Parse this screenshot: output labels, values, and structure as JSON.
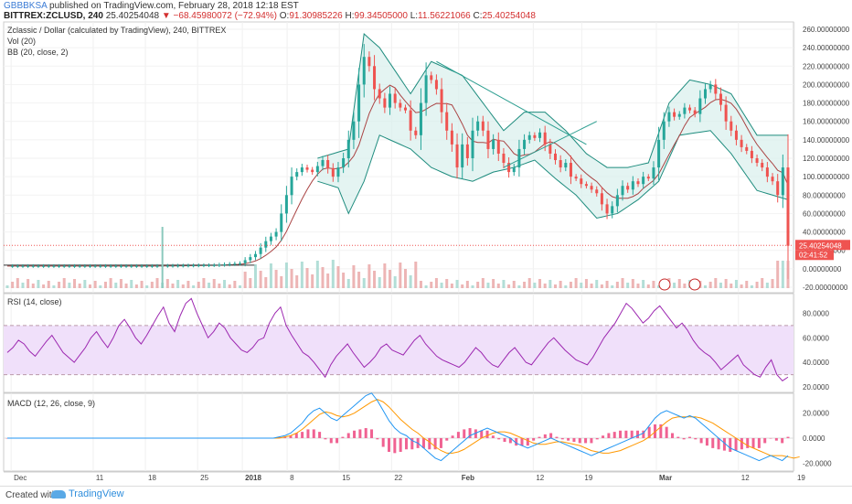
{
  "header": {
    "user": "GBBBKSA",
    "published": "published on TradingView.com, February 28, 2018 12:18 EST",
    "symbol": "BITTREX:ZCLUSD, 240",
    "last": "25.40254048",
    "change": "▼ −68.45980072 (−72.94%)",
    "o_label": "O:",
    "o_val": "91.30985226",
    "h_label": "H:",
    "h_val": "99.34505000",
    "l_label": "L:",
    "l_val": "11.56221066",
    "c_label": "C:",
    "c_val": "25.40254048"
  },
  "main_legend": {
    "title": "Zclassic / Dollar (calculated by TradingView), 240, BITTREX",
    "vol": "Vol (20)",
    "bb": "BB (20, close, 2)"
  },
  "rsi_legend": "RSI (14, close)",
  "macd_legend": "MACD (12, 26, close, 9)",
  "footer": {
    "created": "Created with",
    "brand": "TradingView"
  },
  "colors": {
    "up": "#26a69a",
    "down": "#ef5350",
    "bb": "#1e8c7e",
    "bb_fill": "#d8f0ec",
    "basis": "#a44",
    "rsi": "#9c27b0",
    "rsi_band": "#f0e0fa",
    "macd": "#2196f3",
    "signal": "#ff9800",
    "hist_pos": "#f06292",
    "hist_neg": "#f06292",
    "price_line": "#ef5350"
  },
  "chart_data": [
    {
      "type": "candlestick",
      "title": "Zclassic / Dollar (calculated by TradingView), 240, BITTREX",
      "yaxis_ticks": [
        "260.00000000",
        "240.00000000",
        "220.00000000",
        "200.00000000",
        "180.00000000",
        "160.00000000",
        "140.00000000",
        "120.00000000",
        "100.00000000",
        "80.00000000",
        "60.00000000",
        "40.00000000",
        "20.00000000",
        "0.00000000",
        "-20.00000000"
      ],
      "ylim": [
        -20,
        260
      ],
      "xaxis_ticks": [
        "Dec",
        "11",
        "18",
        "25",
        "2018",
        "8",
        "15",
        "22",
        "Feb",
        "12",
        "19",
        "Mar",
        "12",
        "19"
      ],
      "last_price_label": "25.40254048",
      "countdown_label": "02:41:52",
      "close_path": [
        [
          0,
          3
        ],
        [
          12,
          3
        ],
        [
          28,
          3
        ],
        [
          40,
          4
        ],
        [
          45,
          6
        ],
        [
          48,
          16
        ],
        [
          50,
          30
        ],
        [
          52,
          40
        ],
        [
          53,
          60
        ],
        [
          55,
          100
        ],
        [
          57,
          110
        ],
        [
          59,
          105
        ],
        [
          61,
          118
        ],
        [
          63,
          100
        ],
        [
          64,
          110
        ],
        [
          65,
          120
        ],
        [
          66,
          140
        ],
        [
          67,
          160
        ],
        [
          68,
          200
        ],
        [
          69,
          230
        ],
        [
          70,
          220
        ],
        [
          71,
          195
        ],
        [
          72,
          185
        ],
        [
          73,
          175
        ],
        [
          74,
          190
        ],
        [
          75,
          180
        ],
        [
          76,
          175
        ],
        [
          77,
          172
        ],
        [
          78,
          150
        ],
        [
          79,
          145
        ],
        [
          80,
          180
        ],
        [
          81,
          210
        ],
        [
          82,
          205
        ],
        [
          83,
          195
        ],
        [
          84,
          170
        ],
        [
          85,
          150
        ],
        [
          86,
          135
        ],
        [
          87,
          110
        ],
        [
          88,
          135
        ],
        [
          89,
          120
        ],
        [
          90,
          150
        ],
        [
          91,
          160
        ],
        [
          92,
          150
        ],
        [
          93,
          130
        ],
        [
          94,
          140
        ],
        [
          95,
          125
        ],
        [
          96,
          115
        ],
        [
          97,
          105
        ],
        [
          98,
          110
        ],
        [
          99,
          130
        ],
        [
          100,
          140
        ],
        [
          101,
          145
        ],
        [
          102,
          142
        ],
        [
          103,
          148
        ],
        [
          104,
          135
        ],
        [
          105,
          125
        ],
        [
          106,
          118
        ],
        [
          107,
          110
        ],
        [
          108,
          115
        ],
        [
          109,
          100
        ],
        [
          110,
          98
        ],
        [
          111,
          92
        ],
        [
          112,
          90
        ],
        [
          113,
          86
        ],
        [
          114,
          82
        ],
        [
          115,
          70
        ],
        [
          116,
          60
        ],
        [
          117,
          68
        ],
        [
          118,
          80
        ],
        [
          119,
          90
        ],
        [
          120,
          86
        ],
        [
          121,
          95
        ],
        [
          122,
          92
        ],
        [
          123,
          100
        ],
        [
          124,
          98
        ],
        [
          125,
          110
        ],
        [
          126,
          140
        ],
        [
          127,
          160
        ],
        [
          128,
          170
        ],
        [
          129,
          165
        ],
        [
          130,
          168
        ],
        [
          131,
          175
        ],
        [
          132,
          172
        ],
        [
          133,
          168
        ],
        [
          134,
          185
        ],
        [
          135,
          195
        ],
        [
          136,
          200
        ],
        [
          137,
          190
        ],
        [
          138,
          178
        ],
        [
          139,
          160
        ],
        [
          140,
          150
        ],
        [
          141,
          140
        ],
        [
          142,
          132
        ],
        [
          143,
          128
        ],
        [
          144,
          120
        ],
        [
          145,
          115
        ],
        [
          146,
          110
        ],
        [
          147,
          100
        ],
        [
          148,
          95
        ],
        [
          149,
          80
        ],
        [
          150,
          110
        ],
        [
          151,
          25
        ]
      ],
      "bb_upper": [
        [
          60,
          120
        ],
        [
          66,
          130
        ],
        [
          69,
          255
        ],
        [
          72,
          240
        ],
        [
          78,
          190
        ],
        [
          82,
          225
        ],
        [
          88,
          210
        ],
        [
          92,
          180
        ],
        [
          96,
          150
        ],
        [
          100,
          170
        ],
        [
          104,
          170
        ],
        [
          108,
          150
        ],
        [
          112,
          125
        ],
        [
          116,
          110
        ],
        [
          120,
          110
        ],
        [
          124,
          115
        ],
        [
          128,
          180
        ],
        [
          132,
          205
        ],
        [
          136,
          200
        ],
        [
          140,
          190
        ],
        [
          145,
          145
        ],
        [
          151,
          145
        ]
      ],
      "bb_lower": [
        [
          60,
          95
        ],
        [
          64,
          88
        ],
        [
          66,
          60
        ],
        [
          69,
          95
        ],
        [
          72,
          145
        ],
        [
          78,
          130
        ],
        [
          82,
          110
        ],
        [
          86,
          100
        ],
        [
          90,
          95
        ],
        [
          94,
          105
        ],
        [
          98,
          110
        ],
        [
          102,
          118
        ],
        [
          106,
          98
        ],
        [
          110,
          80
        ],
        [
          114,
          55
        ],
        [
          118,
          60
        ],
        [
          122,
          75
        ],
        [
          126,
          95
        ],
        [
          130,
          145
        ],
        [
          136,
          150
        ],
        [
          140,
          125
        ],
        [
          145,
          85
        ],
        [
          151,
          75
        ]
      ],
      "trendline": [
        [
          83,
          225
        ],
        [
          112,
          135
        ]
      ],
      "trendline2": [
        [
          96,
          110
        ],
        [
          114,
          160
        ]
      ]
    },
    {
      "type": "line",
      "title": "RSI (14, close)",
      "yaxis_ticks": [
        "80.0000",
        "60.0000",
        "40.0000",
        "20.0000"
      ],
      "ylim": [
        20,
        90
      ],
      "bands": [
        30,
        70
      ],
      "values": [
        48,
        52,
        58,
        55,
        49,
        45,
        51,
        57,
        62,
        55,
        48,
        44,
        40,
        46,
        52,
        60,
        65,
        58,
        52,
        60,
        70,
        75,
        68,
        60,
        55,
        62,
        70,
        78,
        85,
        72,
        65,
        78,
        88,
        92,
        80,
        70,
        60,
        65,
        72,
        68,
        60,
        55,
        50,
        48,
        52,
        58,
        60,
        72,
        80,
        85,
        70,
        62,
        55,
        48,
        45,
        40,
        34,
        28,
        38,
        45,
        50,
        55,
        48,
        42,
        36,
        40,
        45,
        52,
        55,
        50,
        48,
        46,
        52,
        58,
        62,
        55,
        50,
        45,
        42,
        40,
        38,
        36,
        40,
        46,
        52,
        48,
        42,
        38,
        36,
        42,
        48,
        52,
        46,
        40,
        38,
        44,
        50,
        56,
        60,
        55,
        50,
        46,
        42,
        40,
        38,
        44,
        52,
        60,
        66,
        72,
        80,
        88,
        84,
        78,
        72,
        76,
        82,
        86,
        80,
        74,
        68,
        72,
        66,
        58,
        52,
        48,
        45,
        40,
        34,
        38,
        42,
        46,
        38,
        34,
        30,
        28,
        36,
        42,
        30,
        25,
        28
      ]
    },
    {
      "type": "line",
      "title": "MACD (12, 26, close, 9)",
      "yaxis_ticks": [
        "20.0000",
        "0.0000",
        "-20.0000"
      ],
      "ylim": [
        -22,
        30
      ],
      "macd": [
        0,
        0,
        0,
        0,
        0,
        0,
        0,
        0,
        0,
        0,
        0,
        0,
        0,
        0,
        0,
        0,
        0,
        0,
        0,
        0,
        0,
        0,
        0,
        0,
        0,
        0,
        0,
        0,
        0,
        0,
        0,
        0,
        0,
        0,
        0,
        0,
        0,
        0,
        0,
        0,
        0,
        0,
        0,
        0,
        0,
        0,
        0,
        1,
        2,
        4,
        8,
        12,
        18,
        22,
        24,
        20,
        16,
        14,
        18,
        22,
        26,
        30,
        34,
        36,
        30,
        22,
        14,
        8,
        4,
        2,
        -2,
        -4,
        -8,
        -12,
        -16,
        -18,
        -14,
        -10,
        -6,
        -2,
        2,
        4,
        6,
        8,
        6,
        4,
        2,
        0,
        -4,
        -6,
        -8,
        -6,
        -4,
        -2,
        0,
        -2,
        -4,
        -6,
        -8,
        -10,
        -12,
        -14,
        -12,
        -10,
        -8,
        -6,
        -4,
        -2,
        0,
        2,
        4,
        10,
        16,
        20,
        22,
        20,
        18,
        16,
        18,
        16,
        12,
        8,
        4,
        0,
        -4,
        -8,
        -10,
        -12,
        -14,
        -16,
        -18,
        -16,
        -14,
        -16,
        -18,
        -14
      ],
      "signal": [
        0,
        0,
        0,
        0,
        0,
        0,
        0,
        0,
        0,
        0,
        0,
        0,
        0,
        0,
        0,
        0,
        0,
        0,
        0,
        0,
        0,
        0,
        0,
        0,
        0,
        0,
        0,
        0,
        0,
        0,
        0,
        0,
        0,
        0,
        0,
        0,
        0,
        0,
        0,
        0,
        0,
        0,
        0,
        0,
        0,
        0,
        0,
        0,
        1,
        2,
        4,
        7,
        11,
        15,
        19,
        21,
        20,
        18,
        17,
        18,
        20,
        23,
        26,
        29,
        31,
        29,
        25,
        20,
        15,
        11,
        7,
        4,
        0,
        -3,
        -7,
        -10,
        -12,
        -12,
        -11,
        -9,
        -6,
        -3,
        0,
        2,
        4,
        5,
        5,
        4,
        2,
        0,
        -2,
        -4,
        -5,
        -5,
        -4,
        -3,
        -3,
        -4,
        -5,
        -6,
        -8,
        -10,
        -11,
        -12,
        -12,
        -11,
        -10,
        -8,
        -6,
        -4,
        -2,
        1,
        5,
        9,
        13,
        16,
        17,
        17,
        17,
        17,
        16,
        14,
        12,
        9,
        6,
        3,
        0,
        -3,
        -6,
        -8,
        -10,
        -12,
        -14,
        -14,
        -14,
        -15,
        -16,
        -15
      ]
    }
  ]
}
